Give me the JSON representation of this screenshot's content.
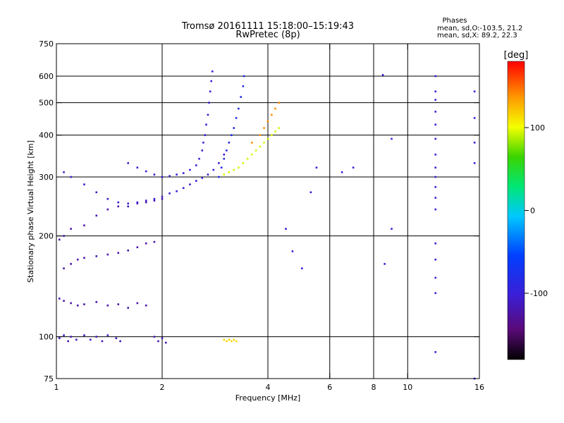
{
  "chart_data": {
    "type": "scatter",
    "title": "Tromsø 20161111 15:18:00–15:19:43",
    "subtitle": "RwPretec (8p)",
    "xlabel": "Frequency [MHz]",
    "ylabel": "Stationary phase Virtual Height [km]",
    "x_scale": "log",
    "y_scale": "log",
    "xlim": [
      1,
      16
    ],
    "ylim": [
      75,
      750
    ],
    "x_ticks": [
      1,
      2,
      4,
      6,
      8,
      10,
      16
    ],
    "y_ticks": [
      75,
      100,
      200,
      300,
      400,
      500,
      600,
      750
    ],
    "x_gridlines": [
      2,
      4,
      6,
      8,
      10
    ],
    "y_gridlines": [
      100,
      200,
      300,
      400,
      500,
      600
    ],
    "grid": true,
    "info": {
      "heading": "Phases",
      "line1": "mean, sd,O:-103.5, 21.2",
      "line2": "mean, sd,X:  89.2, 22.3"
    },
    "colorbar": {
      "label": "[deg]",
      "range": [
        -180,
        180
      ],
      "ticks": [
        100,
        0,
        -100
      ],
      "colormap": "rainbow (black-purple-blue-cyan-green-yellow-orange-red)"
    },
    "point_groups": [
      {
        "trace": "E-region echoes near 100 km",
        "phase_deg": -115,
        "points": [
          [
            1.02,
            99
          ],
          [
            1.05,
            101
          ],
          [
            1.08,
            97
          ],
          [
            1.1,
            100
          ],
          [
            1.14,
            98
          ],
          [
            1.2,
            101
          ],
          [
            1.25,
            98
          ],
          [
            1.3,
            100
          ],
          [
            1.35,
            97
          ],
          [
            1.4,
            101
          ],
          [
            1.48,
            99
          ],
          [
            1.52,
            97
          ],
          [
            1.9,
            100
          ],
          [
            1.95,
            97
          ],
          [
            2.0,
            99
          ],
          [
            2.05,
            96
          ]
        ]
      },
      {
        "trace": "Sporadic point near 100 km",
        "phase_deg": 115,
        "points": [
          [
            3.0,
            98
          ],
          [
            3.05,
            97
          ],
          [
            3.1,
            98
          ],
          [
            3.15,
            97
          ],
          [
            3.2,
            98
          ],
          [
            3.25,
            97
          ]
        ]
      },
      {
        "trace": "Lower-frequency scatter band",
        "phase_deg": -120,
        "points": [
          [
            1.02,
            130
          ],
          [
            1.05,
            128
          ],
          [
            1.1,
            126
          ],
          [
            1.15,
            124
          ],
          [
            1.2,
            125
          ],
          [
            1.3,
            127
          ],
          [
            1.4,
            124
          ],
          [
            1.5,
            125
          ],
          [
            1.6,
            122
          ],
          [
            1.7,
            126
          ],
          [
            1.8,
            124
          ],
          [
            1.05,
            160
          ],
          [
            1.1,
            165
          ],
          [
            1.15,
            170
          ],
          [
            1.2,
            172
          ],
          [
            1.3,
            174
          ],
          [
            1.4,
            176
          ],
          [
            1.5,
            178
          ],
          [
            1.6,
            181
          ],
          [
            1.7,
            185
          ],
          [
            1.8,
            190
          ],
          [
            1.9,
            192
          ],
          [
            1.02,
            195
          ],
          [
            1.05,
            200
          ],
          [
            1.1,
            210
          ],
          [
            1.2,
            215
          ],
          [
            1.3,
            230
          ],
          [
            1.4,
            240
          ],
          [
            1.5,
            245
          ],
          [
            1.6,
            245
          ],
          [
            1.7,
            250
          ],
          [
            1.8,
            252
          ],
          [
            1.9,
            255
          ],
          [
            2.0,
            258
          ]
        ]
      },
      {
        "trace": "F-region O trace",
        "phase_deg": -105,
        "points": [
          [
            1.05,
            310
          ],
          [
            1.1,
            300
          ],
          [
            1.2,
            285
          ],
          [
            1.3,
            270
          ],
          [
            1.4,
            258
          ],
          [
            1.5,
            252
          ],
          [
            1.6,
            250
          ],
          [
            1.7,
            252
          ],
          [
            1.8,
            255
          ],
          [
            1.9,
            258
          ],
          [
            2.0,
            262
          ],
          [
            2.1,
            268
          ],
          [
            2.2,
            272
          ],
          [
            2.3,
            278
          ],
          [
            2.4,
            285
          ],
          [
            2.5,
            292
          ],
          [
            2.6,
            298
          ],
          [
            2.7,
            305
          ],
          [
            2.8,
            315
          ],
          [
            2.9,
            330
          ],
          [
            3.0,
            350
          ]
        ]
      },
      {
        "trace": "Upper F trace",
        "phase_deg": -100,
        "points": [
          [
            1.6,
            330
          ],
          [
            1.7,
            320
          ],
          [
            1.8,
            312
          ],
          [
            1.9,
            305
          ],
          [
            2.0,
            300
          ],
          [
            2.1,
            302
          ],
          [
            2.2,
            305
          ],
          [
            2.3,
            308
          ],
          [
            2.4,
            315
          ],
          [
            2.5,
            325
          ],
          [
            2.55,
            340
          ],
          [
            2.6,
            360
          ],
          [
            2.62,
            380
          ],
          [
            2.65,
            400
          ],
          [
            2.67,
            430
          ],
          [
            2.7,
            460
          ],
          [
            2.72,
            500
          ],
          [
            2.74,
            540
          ],
          [
            2.76,
            580
          ],
          [
            2.78,
            620
          ]
        ]
      },
      {
        "trace": "Blue trace near 3 MHz",
        "phase_deg": -85,
        "points": [
          [
            2.9,
            300
          ],
          [
            2.95,
            320
          ],
          [
            3.0,
            340
          ],
          [
            3.05,
            360
          ],
          [
            3.1,
            380
          ],
          [
            3.15,
            400
          ],
          [
            3.2,
            420
          ],
          [
            3.25,
            450
          ],
          [
            3.3,
            480
          ],
          [
            3.35,
            520
          ],
          [
            3.4,
            560
          ],
          [
            3.42,
            600
          ]
        ]
      },
      {
        "trace": "X-mode trace",
        "phase_deg": 95,
        "points": [
          [
            3.0,
            305
          ],
          [
            3.1,
            310
          ],
          [
            3.2,
            315
          ],
          [
            3.3,
            320
          ],
          [
            3.4,
            330
          ],
          [
            3.5,
            340
          ],
          [
            3.6,
            350
          ],
          [
            3.7,
            360
          ],
          [
            3.8,
            370
          ],
          [
            3.9,
            380
          ],
          [
            4.0,
            390
          ],
          [
            4.1,
            400
          ],
          [
            4.2,
            410
          ],
          [
            4.3,
            420
          ]
        ]
      },
      {
        "trace": "Orange X-mode top",
        "phase_deg": 140,
        "points": [
          [
            3.6,
            380
          ],
          [
            3.8,
            400
          ],
          [
            3.9,
            420
          ],
          [
            4.0,
            440
          ],
          [
            4.1,
            460
          ],
          [
            4.2,
            480
          ],
          [
            4.3,
            500
          ]
        ]
      },
      {
        "trace": "Scattered isolated points",
        "phase_deg": -100,
        "points": [
          [
            4.5,
            210
          ],
          [
            4.7,
            180
          ],
          [
            5.0,
            160
          ],
          [
            5.3,
            270
          ],
          [
            5.5,
            320
          ],
          [
            6.5,
            310
          ],
          [
            7.0,
            320
          ],
          [
            8.5,
            605
          ],
          [
            8.6,
            165
          ],
          [
            9.0,
            390
          ],
          [
            9.0,
            210
          ],
          [
            12.0,
            600
          ],
          [
            12.0,
            540
          ],
          [
            12.0,
            510
          ],
          [
            12.0,
            470
          ],
          [
            12.0,
            430
          ],
          [
            12.0,
            390
          ],
          [
            12.0,
            350
          ],
          [
            12.0,
            320
          ],
          [
            12.0,
            300
          ],
          [
            12.0,
            280
          ],
          [
            12.0,
            260
          ],
          [
            12.0,
            240
          ],
          [
            12.0,
            190
          ],
          [
            12.0,
            170
          ],
          [
            12.0,
            150
          ],
          [
            12.0,
            135
          ],
          [
            12.0,
            90
          ],
          [
            15.5,
            540
          ],
          [
            15.5,
            450
          ],
          [
            15.5,
            380
          ],
          [
            15.5,
            330
          ],
          [
            15.5,
            75
          ]
        ]
      }
    ]
  }
}
